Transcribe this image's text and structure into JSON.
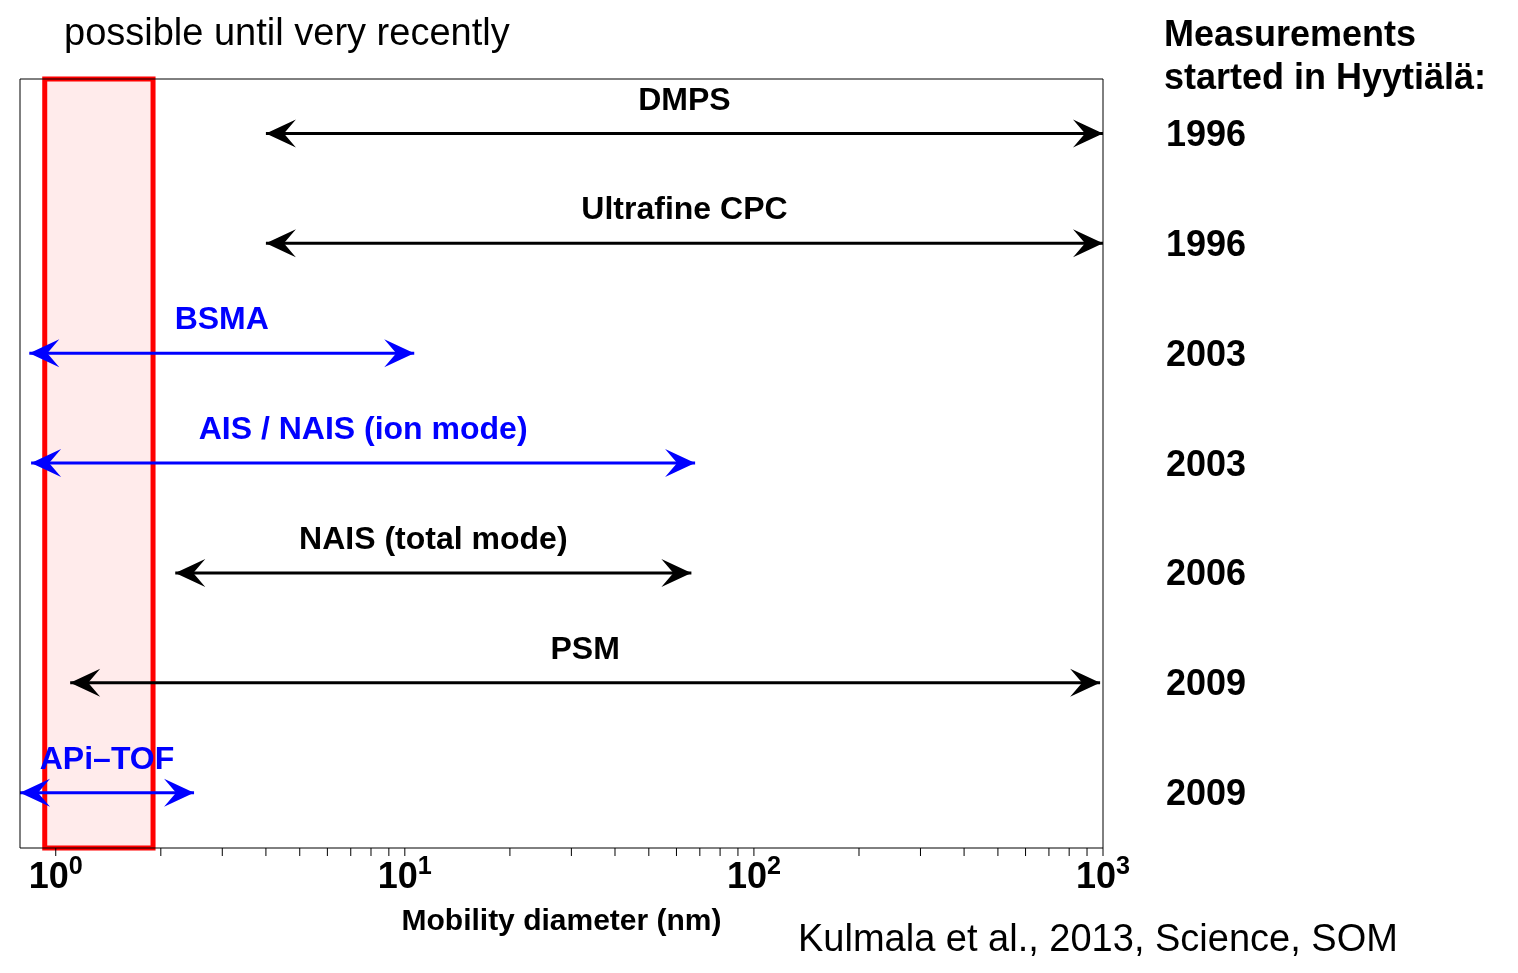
{
  "chart_data": {
    "type": "bar",
    "orientation": "horizontal",
    "xlabel": "Mobility diameter (nm)",
    "log": "x",
    "grid": false,
    "categories": [
      "DMPS",
      "Ultrafine CPC",
      "BSMA",
      "AIS / NAIS (ion mode)",
      "NAIS (total mode)",
      "PSM",
      "APi–TOF"
    ],
    "base": [
      4,
      4,
      0.84,
      0.85,
      2.2,
      1.1,
      0.79
    ],
    "values": [
      996,
      996,
      9.8,
      67,
      64,
      980,
      1.7
    ],
    "colors": [
      "#000000",
      "#000000",
      "#0000ff",
      "#0000ff",
      "#000000",
      "#000000",
      "#0000ff"
    ],
    "xlim": [
      0.79,
      1000
    ],
    "xticks": [
      {
        "value": 1,
        "label": "10$^{0}$"
      },
      {
        "value": 2,
        "label": null
      },
      {
        "value": 3,
        "label": null
      },
      {
        "value": 4,
        "label": null
      },
      {
        "value": 5,
        "label": null
      },
      {
        "value": 6,
        "label": null
      },
      {
        "value": 7,
        "label": null
      },
      {
        "value": 8,
        "label": null
      },
      {
        "value": 9,
        "label": null
      },
      {
        "value": 10,
        "label": "10$^{1}$"
      },
      {
        "value": 20,
        "label": null
      },
      {
        "value": 30,
        "label": null
      },
      {
        "value": 40,
        "label": null
      },
      {
        "value": 50,
        "label": null
      },
      {
        "value": 60,
        "label": null
      },
      {
        "value": 70,
        "label": null
      },
      {
        "value": 80,
        "label": null
      },
      {
        "value": 90,
        "label": null
      },
      {
        "value": 100,
        "label": "10$^{2}$"
      },
      {
        "value": 200,
        "label": null
      },
      {
        "value": 300,
        "label": null
      },
      {
        "value": 400,
        "label": null
      },
      {
        "value": 500,
        "label": null
      },
      {
        "value": 600,
        "label": null
      },
      {
        "value": 700,
        "label": null
      },
      {
        "value": 800,
        "label": null
      },
      {
        "value": 900,
        "label": null
      },
      {
        "value": 1000,
        "label": "10$^{3}$"
      }
    ],
    "bands": [
      {
        "axis": "x",
        "from": 0.93,
        "to": 1.9,
        "color": "#ff0000"
      }
    ],
    "annotations": [
      "possible until very recently",
      "Measurements started in Hyytiälä:",
      "1996",
      "1996",
      "2003",
      "2003",
      "2006",
      "2009",
      "2009",
      "Kulmala et al., 2013, Science, SOM"
    ]
  }
}
